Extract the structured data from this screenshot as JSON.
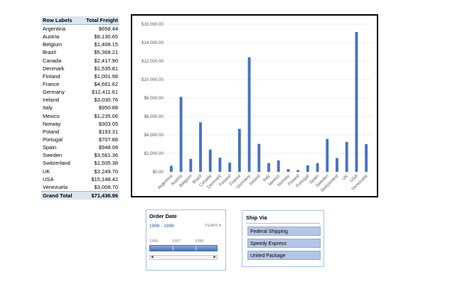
{
  "pivot": {
    "header_label": "Row Labels",
    "header_value": "Total Freight",
    "rows": [
      {
        "label": "Argentina",
        "value": "$658.44"
      },
      {
        "label": "Austria",
        "value": "$8,130.65"
      },
      {
        "label": "Belgium",
        "value": "$1,408.15"
      },
      {
        "label": "Brazil",
        "value": "$5,368.21"
      },
      {
        "label": "Canada",
        "value": "$2,417.90"
      },
      {
        "label": "Denmark",
        "value": "$1,535.81"
      },
      {
        "label": "Finland",
        "value": "$1,001.98"
      },
      {
        "label": "France",
        "value": "$4,661.62"
      },
      {
        "label": "Germany",
        "value": "$12,411.61"
      },
      {
        "label": "Ireland",
        "value": "$3,030.76"
      },
      {
        "label": "Italy",
        "value": "$950.88"
      },
      {
        "label": "Mexico",
        "value": "$1,235.06"
      },
      {
        "label": "Norway",
        "value": "$303.05"
      },
      {
        "label": "Poland",
        "value": "$193.31"
      },
      {
        "label": "Portugal",
        "value": "$707.88"
      },
      {
        "label": "Spain",
        "value": "$948.08"
      },
      {
        "label": "Sweden",
        "value": "$3,561.36"
      },
      {
        "label": "Switzerland",
        "value": "$1,505.38"
      },
      {
        "label": "UK",
        "value": "$3,249.70"
      },
      {
        "label": "USA",
        "value": "$15,148.42"
      },
      {
        "label": "Venezuela",
        "value": "$3,008.70"
      }
    ],
    "total_label": "Grand Total",
    "total_value": "$71,436.96"
  },
  "chart_data": {
    "type": "bar",
    "categories": [
      "Argentina",
      "Austria",
      "Belgium",
      "Brazil",
      "Canada",
      "Denmark",
      "Finland",
      "France",
      "Germany",
      "Ireland",
      "Italy",
      "Mexico",
      "Norway",
      "Poland",
      "Portugal",
      "Spain",
      "Sweden",
      "Switzerland",
      "UK",
      "USA",
      "Venezuela"
    ],
    "values": [
      658.44,
      8130.65,
      1408.15,
      5368.21,
      2417.9,
      1535.81,
      1001.98,
      4661.62,
      12411.61,
      3030.76,
      950.88,
      1235.06,
      303.05,
      193.31,
      707.88,
      948.08,
      3561.36,
      1505.38,
      3249.7,
      15148.42,
      3008.7
    ],
    "ylim": [
      0,
      16000
    ],
    "yticks": [
      "$0.00",
      "$2,000.00",
      "$4,000.00",
      "$6,000.00",
      "$8,000.00",
      "$10,000.00",
      "$12,000.00",
      "$14,000.00",
      "$16,000.00"
    ],
    "grid": true,
    "bar_color": "#4472c4"
  },
  "timeline": {
    "title": "Order Date",
    "range": "1996 - 1998",
    "level": "YEARS",
    "level_icon": "chevron-down-icon",
    "years": [
      "1996",
      "1997",
      "1998"
    ],
    "selected_fraction": 1.0
  },
  "shipvia": {
    "title": "Ship Via",
    "items": [
      "Federal Shipping",
      "Speedy Express",
      "United Package"
    ]
  },
  "colors": {
    "accent": "#4472c4",
    "header_fill": "#dce6f1",
    "slicer_item": "#b4c6e7"
  }
}
